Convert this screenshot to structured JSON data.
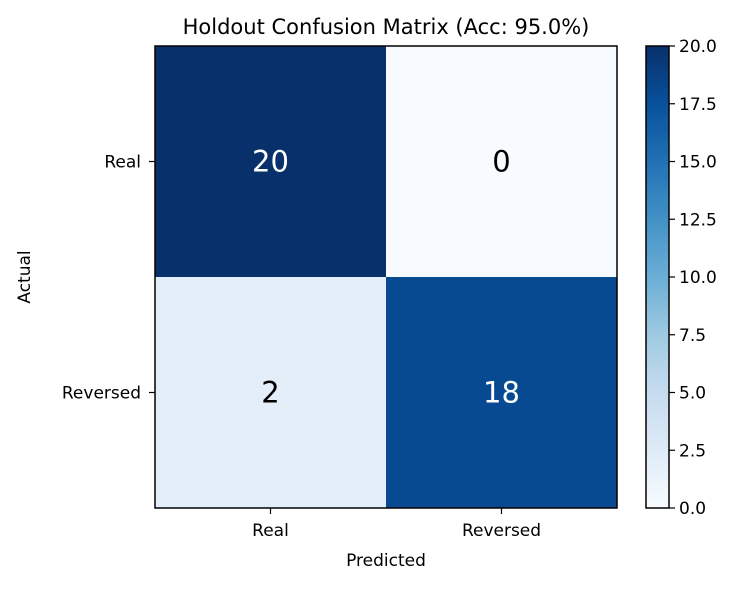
{
  "chart_data": {
    "type": "heatmap",
    "title": "Holdout Confusion Matrix (Acc: 95.0%)",
    "xlabel": "Predicted",
    "ylabel": "Actual",
    "x_categories": [
      "Real",
      "Reversed"
    ],
    "y_categories": [
      "Real",
      "Reversed"
    ],
    "values": [
      [
        20,
        0
      ],
      [
        2,
        18
      ]
    ],
    "cell_labels": [
      [
        "20",
        "0"
      ],
      [
        "2",
        "18"
      ]
    ],
    "colormap": "Blues",
    "colorbar": {
      "min": 0.0,
      "max": 20.0,
      "ticks": [
        0.0,
        2.5,
        5.0,
        7.5,
        10.0,
        12.5,
        15.0,
        17.5,
        20.0
      ],
      "tick_labels": [
        "0.0",
        "2.5",
        "5.0",
        "7.5",
        "10.0",
        "12.5",
        "15.0",
        "17.5",
        "20.0"
      ]
    },
    "grid": false
  },
  "colors": {
    "text_on_dark": "#ffffff",
    "text_on_light": "#000000"
  }
}
